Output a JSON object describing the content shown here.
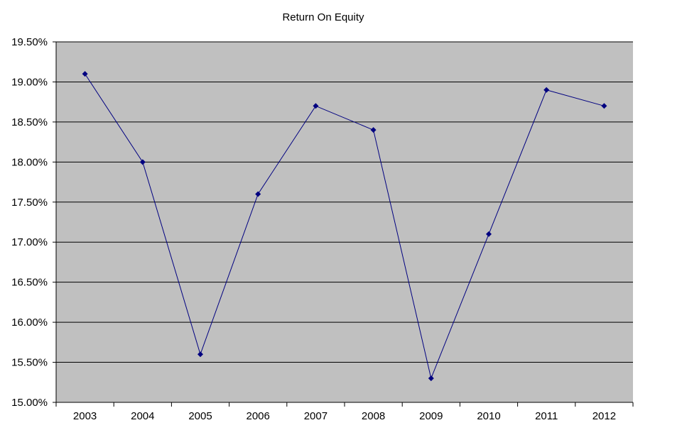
{
  "chart_data": {
    "type": "line",
    "title": "Return On Equity",
    "xlabel": "",
    "ylabel": "",
    "categories": [
      "2003",
      "2004",
      "2005",
      "2006",
      "2007",
      "2008",
      "2009",
      "2010",
      "2011",
      "2012"
    ],
    "series": [
      {
        "values": [
          19.1,
          18.0,
          15.6,
          17.6,
          18.7,
          18.4,
          15.3,
          17.1,
          18.9,
          18.7
        ]
      }
    ],
    "ylim": [
      15.0,
      19.5
    ],
    "yticks": [
      15.0,
      15.5,
      16.0,
      16.5,
      17.0,
      17.5,
      18.0,
      18.5,
      19.0,
      19.5
    ],
    "ytick_labels": [
      "15.00%",
      "15.50%",
      "16.00%",
      "16.50%",
      "17.00%",
      "17.50%",
      "18.00%",
      "18.50%",
      "19.00%",
      "19.50%"
    ],
    "grid": true,
    "legend": "none",
    "colors": {
      "plot_background": "#c0c0c0",
      "line": "#000080",
      "gridline": "#000000"
    }
  }
}
